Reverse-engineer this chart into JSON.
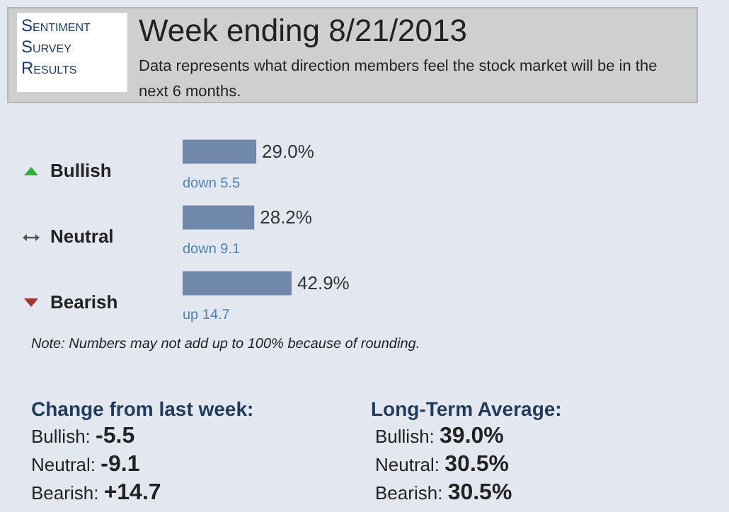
{
  "chart_data": {
    "type": "bar",
    "orientation": "horizontal",
    "title": "Week ending 8/21/2013",
    "subtitle": "Data represents what direction members feel the stock market will be in the next 6 months.",
    "categories": [
      "Bullish",
      "Neutral",
      "Bearish"
    ],
    "values": [
      29.0,
      28.2,
      42.9
    ],
    "color": "#7089ab",
    "value_labels": [
      "29.0%",
      "28.2%",
      "42.9%"
    ],
    "annotations": [
      "Sentiment Survey Results",
      "down 5.5",
      "down 9.1",
      "up 14.7",
      "Note: Numbers may not add up to 100% because of rounding.",
      "Change from last week:",
      "Bullish: -5.5",
      "Neutral: -9.1",
      "Bearish: +14.7",
      "Long-Term Average:",
      "Bullish: 39.0%",
      "Neutral: 30.5%",
      "Bearish: 30.5%"
    ]
  }
}
